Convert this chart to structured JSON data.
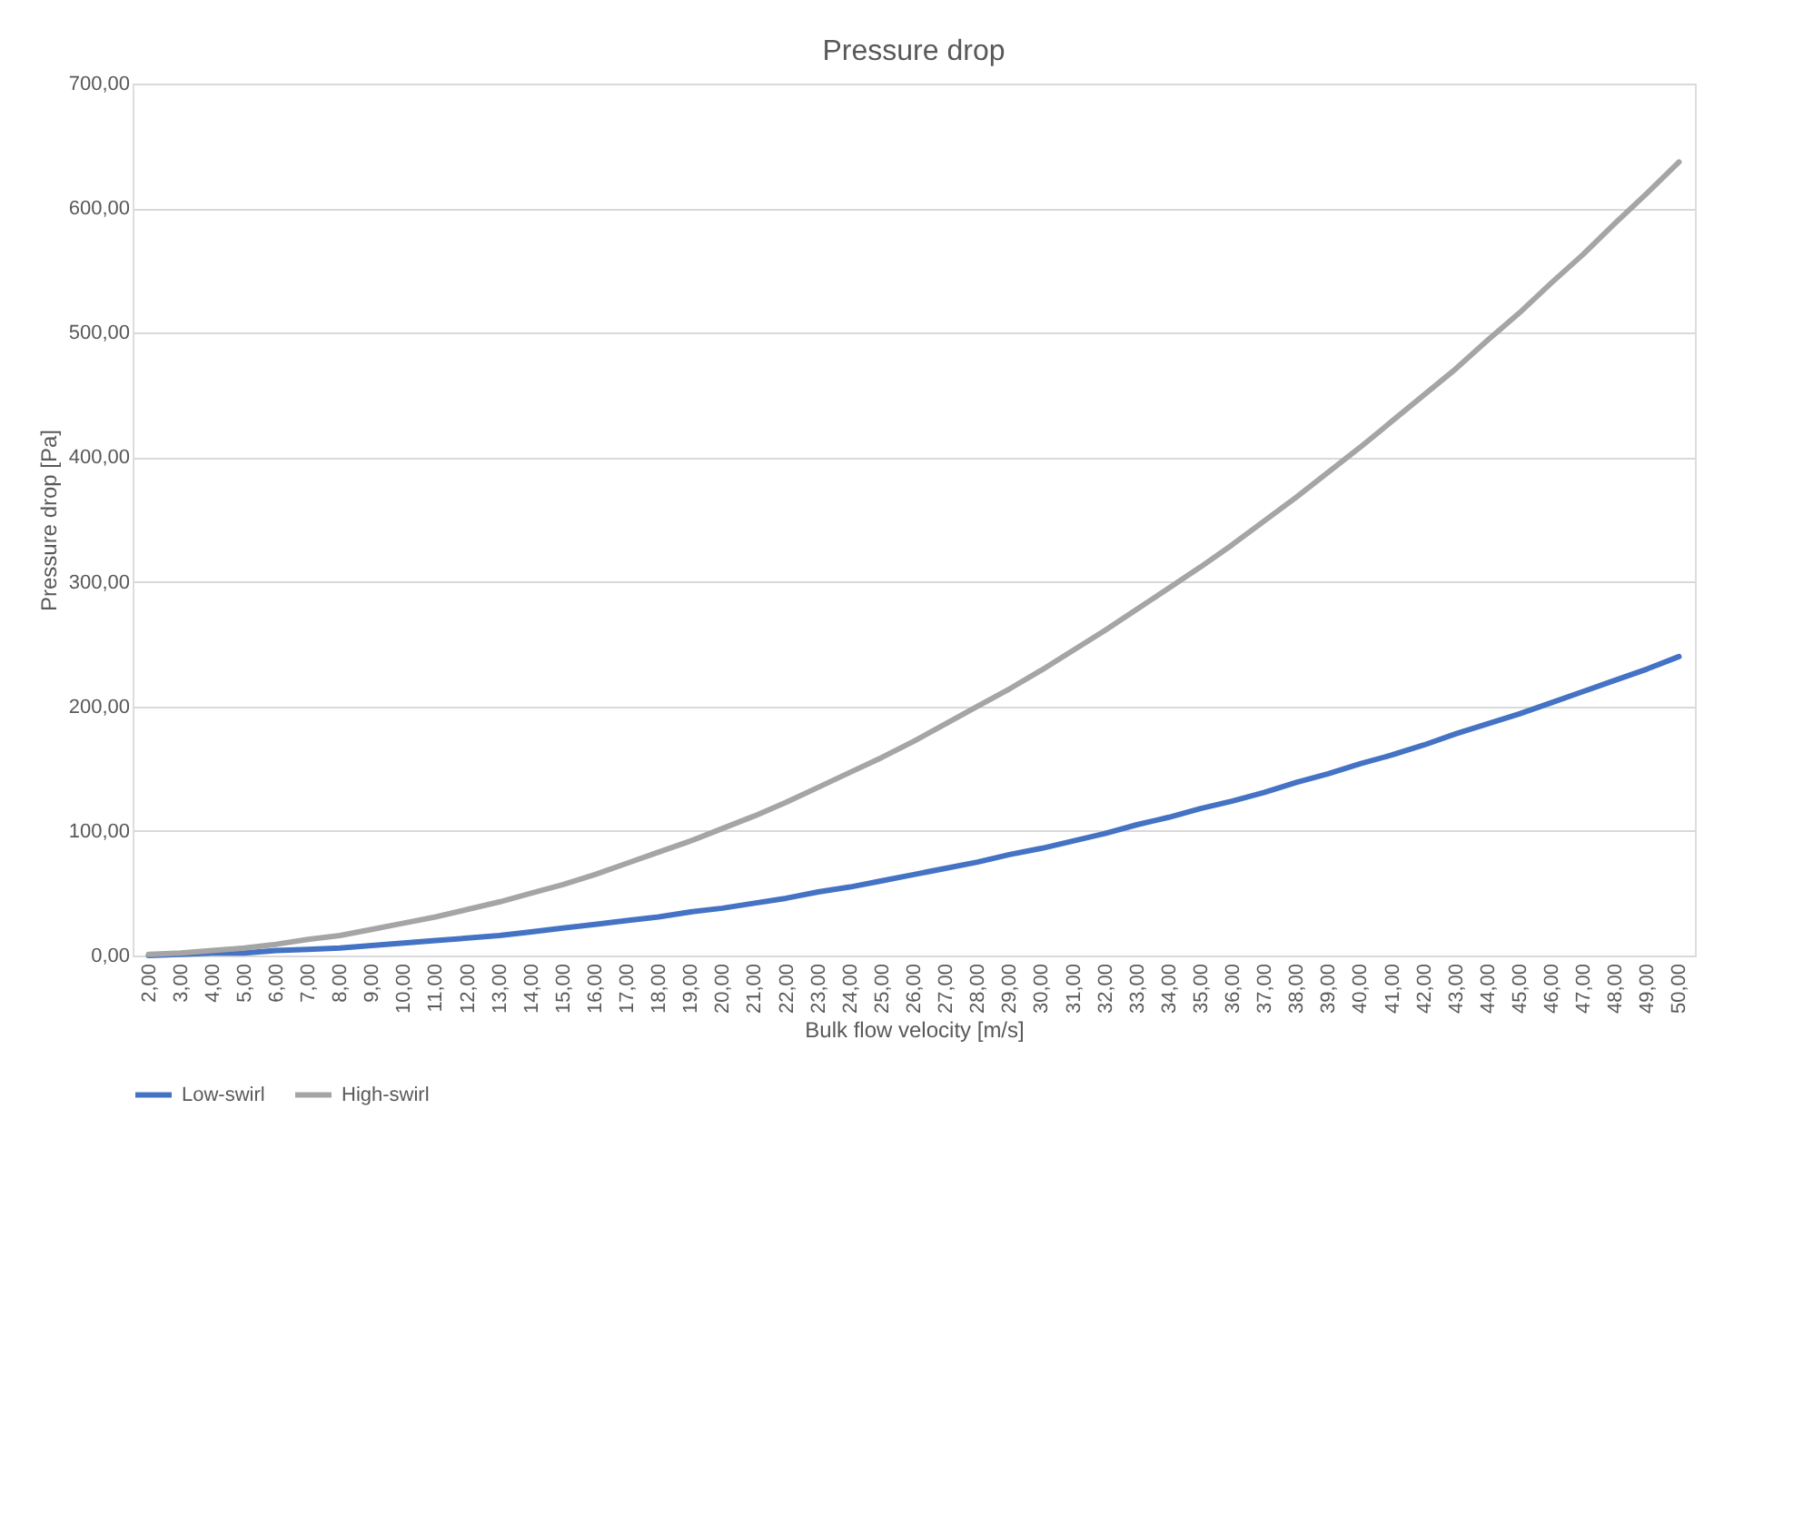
{
  "chart_data": {
    "type": "line",
    "title": "Pressure drop",
    "xlabel": "Bulk flow velocity [m/s]",
    "ylabel": "Pressure drop [Pa]",
    "categories": [
      "2,00",
      "3,00",
      "4,00",
      "5,00",
      "6,00",
      "7,00",
      "8,00",
      "9,00",
      "10,00",
      "11,00",
      "12,00",
      "13,00",
      "14,00",
      "15,00",
      "16,00",
      "17,00",
      "18,00",
      "19,00",
      "20,00",
      "21,00",
      "22,00",
      "23,00",
      "24,00",
      "25,00",
      "26,00",
      "27,00",
      "28,00",
      "29,00",
      "30,00",
      "31,00",
      "32,00",
      "33,00",
      "34,00",
      "35,00",
      "36,00",
      "37,00",
      "38,00",
      "39,00",
      "40,00",
      "41,00",
      "42,00",
      "43,00",
      "44,00",
      "45,00",
      "46,00",
      "47,00",
      "48,00",
      "49,00",
      "50,00"
    ],
    "series": [
      {
        "name": "Low-swirl",
        "color": "#4472c4",
        "values": [
          0,
          1,
          2,
          2,
          4,
          5,
          6,
          8,
          10,
          12,
          14,
          16,
          19,
          22,
          25,
          28,
          31,
          35,
          38,
          42,
          46,
          51,
          55,
          60,
          65,
          70,
          75,
          81,
          86,
          92,
          98,
          105,
          111,
          118,
          124,
          131,
          139,
          146,
          154,
          161,
          169,
          178,
          186,
          194,
          203,
          212,
          221,
          230,
          240
        ]
      },
      {
        "name": "High-swirl",
        "color": "#a5a5a5",
        "values": [
          1,
          2,
          4,
          6,
          9,
          13,
          16,
          21,
          26,
          31,
          37,
          43,
          50,
          57,
          65,
          74,
          83,
          92,
          102,
          112,
          123,
          135,
          147,
          159,
          172,
          186,
          200,
          214,
          229,
          245,
          261,
          278,
          295,
          312,
          330,
          349,
          368,
          388,
          408,
          429,
          450,
          471,
          494,
          516,
          540,
          563,
          588,
          612,
          637
        ]
      }
    ],
    "ylim": [
      0,
      700
    ],
    "yticks": [
      {
        "value": 0,
        "label": "0,00"
      },
      {
        "value": 100,
        "label": "100,00"
      },
      {
        "value": 200,
        "label": "200,00"
      },
      {
        "value": 300,
        "label": "300,00"
      },
      {
        "value": 400,
        "label": "400,00"
      },
      {
        "value": 500,
        "label": "500,00"
      },
      {
        "value": 600,
        "label": "600,00"
      },
      {
        "value": 700,
        "label": "700,00"
      }
    ],
    "grid": "y",
    "legend": "bottom",
    "marker": "none",
    "line_style": "solid"
  }
}
